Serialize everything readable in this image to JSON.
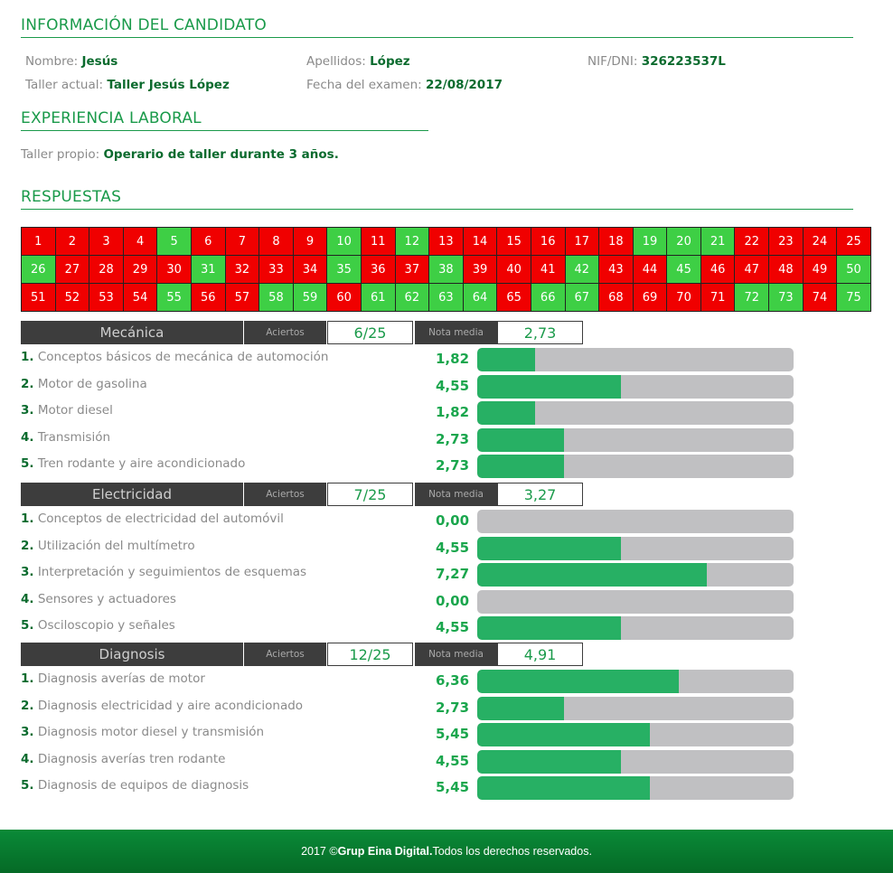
{
  "titles": {
    "candidate": "INFORMACIÓN DEL CANDIDATO",
    "experience": "EXPERIENCIA LABORAL",
    "answers": "RESPUESTAS"
  },
  "candidate": {
    "name_label": "Nombre:",
    "name": "Jesús",
    "surname_label": "Apellidos:",
    "surname": "López",
    "id_label": "NIF/DNI:",
    "id": "326223537L",
    "workshop_label": "Taller actual:",
    "workshop": "Taller Jesús López",
    "exam_date_label": "Fecha del examen:",
    "exam_date": "22/08/2017"
  },
  "experience": {
    "label": "Taller propio:",
    "value": "Operario de taller durante 3 años."
  },
  "answers_correct": [
    5,
    10,
    12,
    19,
    20,
    21,
    26,
    31,
    35,
    38,
    42,
    45,
    50,
    55,
    58,
    59,
    61,
    62,
    63,
    64,
    66,
    67,
    72,
    73,
    75
  ],
  "answers_total": 75,
  "colors": {
    "correct": "#3ecf45",
    "wrong": "#f00000",
    "bar_fill": "#27b064",
    "bar_bg": "#c0c0c2"
  },
  "categories": [
    {
      "name": "Mecánica",
      "hits_label": "Aciertos",
      "hits": "6/25",
      "avg_label": "Nota media",
      "avg": "2,73",
      "items": [
        {
          "num": "1.",
          "label": "Conceptos básicos de mecánica de automoción",
          "score": "1,82",
          "value": 1.82
        },
        {
          "num": "2.",
          "label": "Motor de gasolina",
          "score": "4,55",
          "value": 4.55
        },
        {
          "num": "3.",
          "label": "Motor diesel",
          "score": "1,82",
          "value": 1.82
        },
        {
          "num": "4.",
          "label": "Transmisión",
          "score": "2,73",
          "value": 2.73
        },
        {
          "num": "5.",
          "label": "Tren rodante y aire acondicionado",
          "score": "2,73",
          "value": 2.73
        }
      ]
    },
    {
      "name": "Electricidad",
      "hits_label": "Aciertos",
      "hits": "7/25",
      "avg_label": "Nota media",
      "avg": "3,27",
      "items": [
        {
          "num": "1.",
          "label": "Conceptos de electricidad del automóvil",
          "score": "0,00",
          "value": 0
        },
        {
          "num": "2.",
          "label": "Utilización del multímetro",
          "score": "4,55",
          "value": 4.55
        },
        {
          "num": "3.",
          "label": "Interpretación y seguimientos de esquemas",
          "score": "7,27",
          "value": 7.27
        },
        {
          "num": "4.",
          "label": "Sensores y actuadores",
          "score": "0,00",
          "value": 0
        },
        {
          "num": "5.",
          "label": "Osciloscopio y señales",
          "score": "4,55",
          "value": 4.55
        }
      ]
    },
    {
      "name": "Diagnosis",
      "hits_label": "Aciertos",
      "hits": "12/25",
      "avg_label": "Nota media",
      "avg": "4,91",
      "items": [
        {
          "num": "1.",
          "label": "Diagnosis averías de motor",
          "score": "6,36",
          "value": 6.36
        },
        {
          "num": "2.",
          "label": "Diagnosis electricidad y aire acondicionado",
          "score": "2,73",
          "value": 2.73
        },
        {
          "num": "3.",
          "label": "Diagnosis motor diesel y transmisión",
          "score": "5,45",
          "value": 5.45
        },
        {
          "num": "4.",
          "label": "Diagnosis averías tren rodante",
          "score": "4,55",
          "value": 4.55
        },
        {
          "num": "5.",
          "label": "Diagnosis de equipos de diagnosis",
          "score": "5,45",
          "value": 5.45
        }
      ]
    }
  ],
  "footer": {
    "prefix": "2017 © ",
    "brand": "Grup Eina Digital.",
    "suffix": " Todos los derechos reservados."
  }
}
